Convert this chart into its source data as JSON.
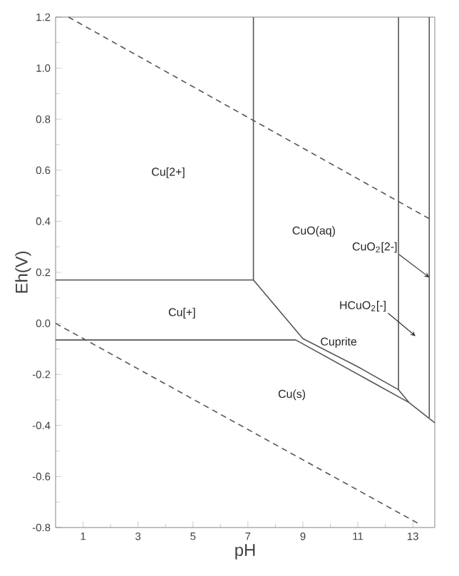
{
  "chart_data": {
    "type": "line",
    "xlabel": "pH",
    "ylabel": "Eh(V)",
    "xlim": [
      0,
      13.8
    ],
    "ylim": [
      -0.8,
      1.2
    ],
    "xticks": [
      1,
      3,
      5,
      7,
      9,
      11,
      13
    ],
    "yticks": [
      {
        "value": -0.8,
        "label": "-0.8"
      },
      {
        "value": -0.6,
        "label": "-0.6"
      },
      {
        "value": -0.4,
        "label": "-0.4"
      },
      {
        "value": -0.2,
        "label": "-0.2"
      },
      {
        "value": 0,
        "label": "0.0"
      },
      {
        "value": 0.2,
        "label": "0.2"
      },
      {
        "value": 0.4,
        "label": "0.4"
      },
      {
        "value": 0.6,
        "label": "0.6"
      },
      {
        "value": 0.8,
        "label": "0.8"
      },
      {
        "value": 1.0,
        "label": "1.0"
      },
      {
        "value": 1.2,
        "label": "1.2"
      }
    ],
    "marker": "none",
    "series": [
      {
        "color": "#555555",
        "x": [
          0,
          7.2
        ],
        "values": [
          0.17,
          0.17
        ]
      },
      {
        "color": "#555555",
        "x": [
          7.2,
          7.2,
          9.0,
          11.0,
          12.48,
          12.86
        ],
        "values": [
          1.2,
          0.17,
          -0.06,
          -0.17,
          -0.26,
          -0.31
        ]
      },
      {
        "color": "#555555",
        "x": [
          0,
          8.74,
          12.86,
          13.8
        ],
        "values": [
          -0.065,
          -0.065,
          -0.31,
          -0.39
        ]
      },
      {
        "color": "#555555",
        "x": [
          12.48,
          12.48
        ],
        "values": [
          -0.26,
          1.2
        ]
      },
      {
        "color": "#555555",
        "x": [
          13.6,
          13.6
        ],
        "values": [
          -0.37,
          1.2
        ]
      },
      {
        "color": "#555555",
        "line_style": "dashed",
        "x": [
          0.47,
          13.6
        ],
        "values": [
          1.2,
          0.41
        ]
      },
      {
        "color": "#555555",
        "line_style": "dashed",
        "x": [
          0,
          13.3
        ],
        "values": [
          0,
          -0.79
        ]
      }
    ],
    "annotations": [
      "Cu[2+]",
      "CuO(aq)",
      "Cu[+]",
      "Cuprite",
      {
        "text": "CuO$_{2}$[2-]",
        "x": 13.6,
        "y": 0.18
      },
      {
        "text": "HCuO$_{2}$[-]",
        "x": 13.1,
        "y": -0.05
      },
      "Cu(s)"
    ]
  }
}
